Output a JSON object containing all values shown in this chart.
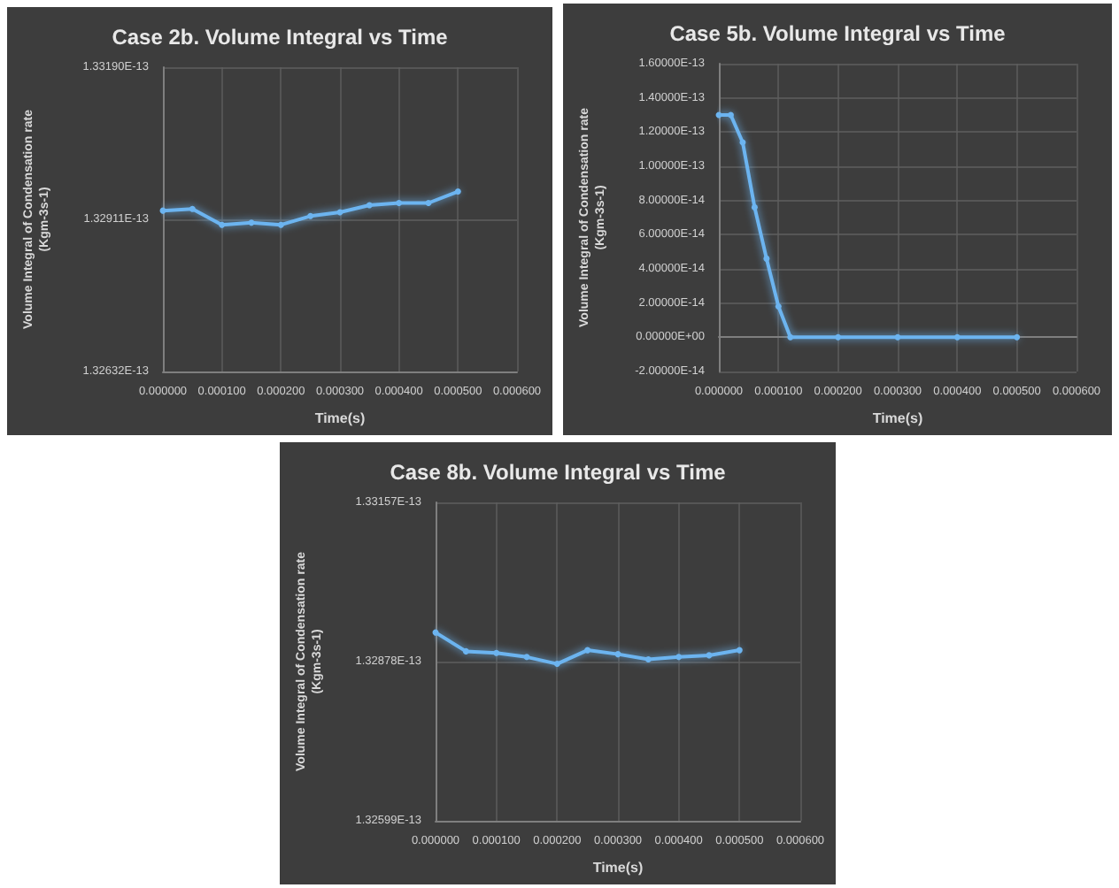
{
  "chart_data": [
    {
      "type": "line",
      "title": "Case 2b. Volume Integral vs Time",
      "xlabel": "Time(s)",
      "ylabel": "Volume Integral of Condensation rate\n(Kgm-3s-1)",
      "x": [
        0,
        5e-05,
        0.0001,
        0.00015,
        0.0002,
        0.00025,
        0.0003,
        0.00035,
        0.0004,
        0.00045,
        0.0005
      ],
      "series": [
        {
          "color": "#6cb4f0",
          "values": [
            1.32927e-13,
            1.3293e-13,
            1.32901e-13,
            1.32905e-13,
            1.32901e-13,
            1.32917e-13,
            1.32924e-13,
            1.32937e-13,
            1.32941e-13,
            1.32941e-13,
            1.32962e-13
          ]
        }
      ],
      "xlim": [
        0,
        0.0006
      ],
      "xticks": [
        {
          "value": 0,
          "label": "0.000000"
        },
        {
          "value": 0.0001,
          "label": "0.000100"
        },
        {
          "value": 0.0002,
          "label": "0.000200"
        },
        {
          "value": 0.0003,
          "label": "0.000300"
        },
        {
          "value": 0.0004,
          "label": "0.000400"
        },
        {
          "value": 0.0005,
          "label": "0.000500"
        },
        {
          "value": 0.0006,
          "label": "0.000600"
        }
      ],
      "ylim": [
        1.32632e-13,
        1.3319e-13
      ],
      "yticks": [
        {
          "value": 1.32632e-13,
          "label": "1.32632E-13"
        },
        {
          "value": 1.32911e-13,
          "label": "1.32911E-13"
        },
        {
          "value": 1.3319e-13,
          "label": "1.33190E-13"
        }
      ],
      "grid": true,
      "marker": "circle",
      "line_style": "solid"
    },
    {
      "type": "line",
      "title": "Case 5b. Volume Integral vs Time",
      "xlabel": "Time(s)",
      "ylabel": "Volume Integral of Condensation rate\n(Kgm-3s-1)",
      "x": [
        0,
        2e-05,
        4e-05,
        6e-05,
        8e-05,
        0.0001,
        0.00012,
        0.0002,
        0.0003,
        0.0004,
        0.0005
      ],
      "series": [
        {
          "color": "#6cb4f0",
          "values": [
            1.3e-13,
            1.3e-13,
            1.14e-13,
            7.6e-14,
            4.6e-14,
            1.8e-14,
            0,
            0,
            0,
            0,
            0
          ]
        }
      ],
      "xlim": [
        0,
        0.0006
      ],
      "xticks": [
        {
          "value": 0,
          "label": "0.000000"
        },
        {
          "value": 0.0001,
          "label": "0.000100"
        },
        {
          "value": 0.0002,
          "label": "0.000200"
        },
        {
          "value": 0.0003,
          "label": "0.000300"
        },
        {
          "value": 0.0004,
          "label": "0.000400"
        },
        {
          "value": 0.0005,
          "label": "0.000500"
        },
        {
          "value": 0.0006,
          "label": "0.000600"
        }
      ],
      "ylim": [
        -2e-14,
        1.6e-13
      ],
      "yticks": [
        {
          "value": -2e-14,
          "label": "-2.00000E-14"
        },
        {
          "value": 0,
          "label": "0.00000E+00"
        },
        {
          "value": 2e-14,
          "label": "2.00000E-14"
        },
        {
          "value": 4e-14,
          "label": "4.00000E-14"
        },
        {
          "value": 6e-14,
          "label": "6.00000E-14"
        },
        {
          "value": 8e-14,
          "label": "8.00000E-14"
        },
        {
          "value": 1e-13,
          "label": "1.00000E-13"
        },
        {
          "value": 1.2e-13,
          "label": "1.20000E-13"
        },
        {
          "value": 1.4e-13,
          "label": "1.40000E-13"
        },
        {
          "value": 1.6e-13,
          "label": "1.60000E-13"
        }
      ],
      "grid": true,
      "marker": "circle",
      "line_style": "solid"
    },
    {
      "type": "line",
      "title": "Case 8b. Volume Integral vs Time",
      "xlabel": "Time(s)",
      "ylabel": "Volume Integral of Condensation rate\n(Kgm-3s-1)",
      "x": [
        0,
        5e-05,
        0.0001,
        0.00015,
        0.0002,
        0.00025,
        0.0003,
        0.00035,
        0.0004,
        0.00045,
        0.0005
      ],
      "series": [
        {
          "color": "#6cb4f0",
          "values": [
            1.32929e-13,
            1.32896e-13,
            1.32893e-13,
            1.32886e-13,
            1.32874e-13,
            1.32898e-13,
            1.32891e-13,
            1.32882e-13,
            1.32886e-13,
            1.32889e-13,
            1.32898e-13
          ]
        }
      ],
      "xlim": [
        0,
        0.0006
      ],
      "xticks": [
        {
          "value": 0,
          "label": "0.000000"
        },
        {
          "value": 0.0001,
          "label": "0.000100"
        },
        {
          "value": 0.0002,
          "label": "0.000200"
        },
        {
          "value": 0.0003,
          "label": "0.000300"
        },
        {
          "value": 0.0004,
          "label": "0.000400"
        },
        {
          "value": 0.0005,
          "label": "0.000500"
        },
        {
          "value": 0.0006,
          "label": "0.000600"
        }
      ],
      "ylim": [
        1.32599e-13,
        1.33157e-13
      ],
      "yticks": [
        {
          "value": 1.32599e-13,
          "label": "1.32599E-13"
        },
        {
          "value": 1.32878e-13,
          "label": "1.32878E-13"
        },
        {
          "value": 1.33157e-13,
          "label": "1.33157E-13"
        }
      ],
      "grid": true,
      "marker": "circle",
      "line_style": "solid"
    }
  ]
}
